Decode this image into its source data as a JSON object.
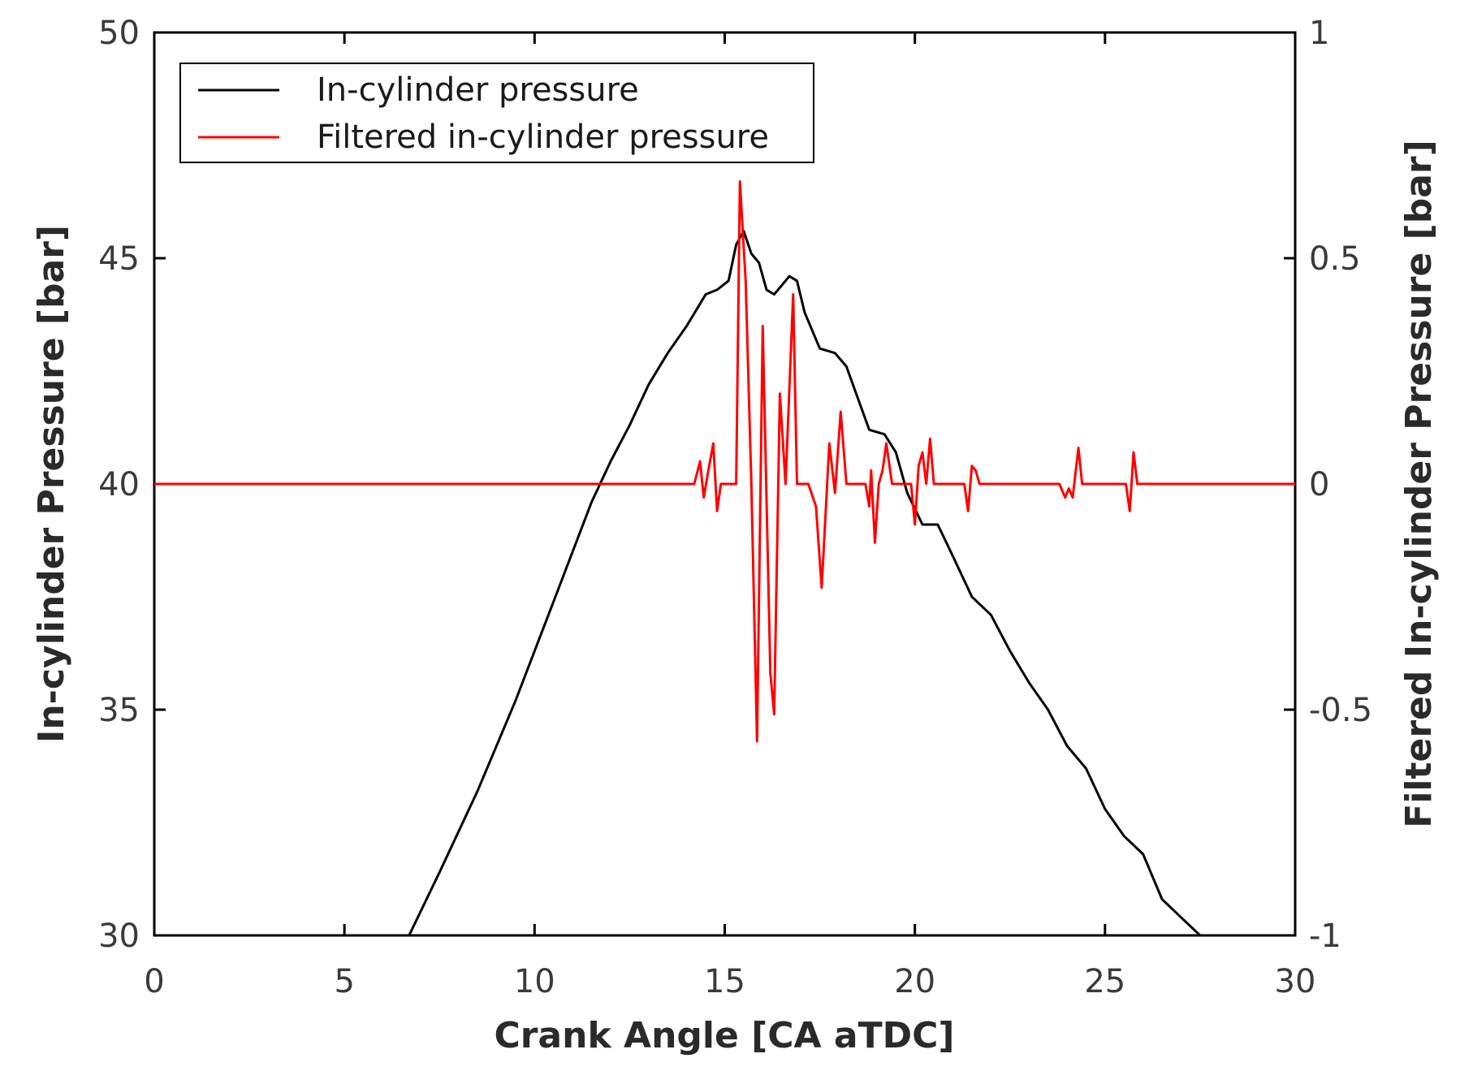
{
  "chart_data": {
    "type": "line",
    "xlabel": "Crank Angle [CA aTDC]",
    "ylabel_left": "In-cylinder Pressure [bar]",
    "ylabel_right": "Filtered In-cylinder Pressure [bar]",
    "xlim": [
      0,
      30
    ],
    "ylim_left": [
      30,
      50
    ],
    "ylim_right": [
      -1,
      1
    ],
    "x_ticks": [
      "0",
      "5",
      "10",
      "15",
      "20",
      "25",
      "30"
    ],
    "y_left_ticks": [
      "30",
      "35",
      "40",
      "45",
      "50"
    ],
    "y_right_ticks": [
      "-1",
      "-0.5",
      "0",
      "0.5",
      "1"
    ],
    "grid": false,
    "legend_position": "top-left",
    "series": [
      {
        "name": "In-cylinder pressure",
        "axis": "left",
        "color": "#000000",
        "points": [
          [
            6.7,
            30.0
          ],
          [
            7.5,
            31.4
          ],
          [
            8.5,
            33.2
          ],
          [
            9.5,
            35.2
          ],
          [
            10.5,
            37.4
          ],
          [
            11.0,
            38.5
          ],
          [
            11.5,
            39.6
          ],
          [
            12.0,
            40.5
          ],
          [
            12.5,
            41.3
          ],
          [
            13.0,
            42.2
          ],
          [
            13.5,
            42.9
          ],
          [
            14.0,
            43.5
          ],
          [
            14.5,
            44.2
          ],
          [
            14.8,
            44.3
          ],
          [
            15.1,
            44.5
          ],
          [
            15.3,
            45.3
          ],
          [
            15.5,
            45.6
          ],
          [
            15.7,
            45.1
          ],
          [
            15.9,
            44.9
          ],
          [
            16.1,
            44.3
          ],
          [
            16.3,
            44.2
          ],
          [
            16.5,
            44.4
          ],
          [
            16.7,
            44.6
          ],
          [
            16.9,
            44.5
          ],
          [
            17.1,
            43.8
          ],
          [
            17.5,
            43.0
          ],
          [
            17.9,
            42.9
          ],
          [
            18.2,
            42.6
          ],
          [
            18.5,
            41.9
          ],
          [
            18.8,
            41.2
          ],
          [
            19.2,
            41.1
          ],
          [
            19.5,
            40.7
          ],
          [
            19.8,
            39.8
          ],
          [
            20.2,
            39.1
          ],
          [
            20.6,
            39.1
          ],
          [
            21.0,
            38.4
          ],
          [
            21.5,
            37.5
          ],
          [
            22.0,
            37.1
          ],
          [
            22.5,
            36.3
          ],
          [
            23.0,
            35.6
          ],
          [
            23.5,
            35.0
          ],
          [
            24.0,
            34.2
          ],
          [
            24.5,
            33.7
          ],
          [
            25.0,
            32.8
          ],
          [
            25.5,
            32.2
          ],
          [
            26.0,
            31.8
          ],
          [
            26.5,
            30.8
          ],
          [
            27.0,
            30.4
          ],
          [
            27.5,
            30.0
          ]
        ]
      },
      {
        "name": "Filtered in-cylinder pressure",
        "axis": "right",
        "color": "#ff0000",
        "points": [
          [
            0,
            0
          ],
          [
            14.2,
            0
          ],
          [
            14.35,
            0.05
          ],
          [
            14.45,
            -0.03
          ],
          [
            14.55,
            0.02
          ],
          [
            14.7,
            0.09
          ],
          [
            14.8,
            -0.06
          ],
          [
            14.9,
            0.0
          ],
          [
            15.3,
            0.0
          ],
          [
            15.4,
            0.67
          ],
          [
            15.55,
            0.45
          ],
          [
            15.7,
            0.0
          ],
          [
            15.85,
            -0.57
          ],
          [
            16.0,
            0.35
          ],
          [
            16.2,
            -0.42
          ],
          [
            16.3,
            -0.51
          ],
          [
            16.45,
            0.2
          ],
          [
            16.6,
            0.0
          ],
          [
            16.8,
            0.42
          ],
          [
            16.9,
            0.0
          ],
          [
            17.2,
            0.0
          ],
          [
            17.4,
            -0.05
          ],
          [
            17.55,
            -0.23
          ],
          [
            17.75,
            0.09
          ],
          [
            17.9,
            -0.02
          ],
          [
            18.05,
            0.16
          ],
          [
            18.2,
            0.0
          ],
          [
            18.7,
            0.0
          ],
          [
            18.8,
            -0.05
          ],
          [
            18.85,
            0.03
          ],
          [
            18.95,
            -0.13
          ],
          [
            19.05,
            0.0
          ],
          [
            19.15,
            0.03
          ],
          [
            19.25,
            0.09
          ],
          [
            19.4,
            0.0
          ],
          [
            19.9,
            0.0
          ],
          [
            20.0,
            -0.09
          ],
          [
            20.1,
            0.04
          ],
          [
            20.2,
            0.07
          ],
          [
            20.3,
            0.0
          ],
          [
            20.4,
            0.1
          ],
          [
            20.5,
            0.0
          ],
          [
            21.3,
            0.0
          ],
          [
            21.4,
            -0.06
          ],
          [
            21.5,
            0.04
          ],
          [
            21.6,
            0.03
          ],
          [
            21.7,
            0.0
          ],
          [
            23.8,
            0.0
          ],
          [
            23.95,
            -0.03
          ],
          [
            24.05,
            -0.01
          ],
          [
            24.15,
            -0.03
          ],
          [
            24.3,
            0.08
          ],
          [
            24.4,
            0.0
          ],
          [
            25.55,
            0.0
          ],
          [
            25.65,
            -0.06
          ],
          [
            25.75,
            0.07
          ],
          [
            25.85,
            0.0
          ],
          [
            30,
            0
          ]
        ]
      }
    ]
  }
}
